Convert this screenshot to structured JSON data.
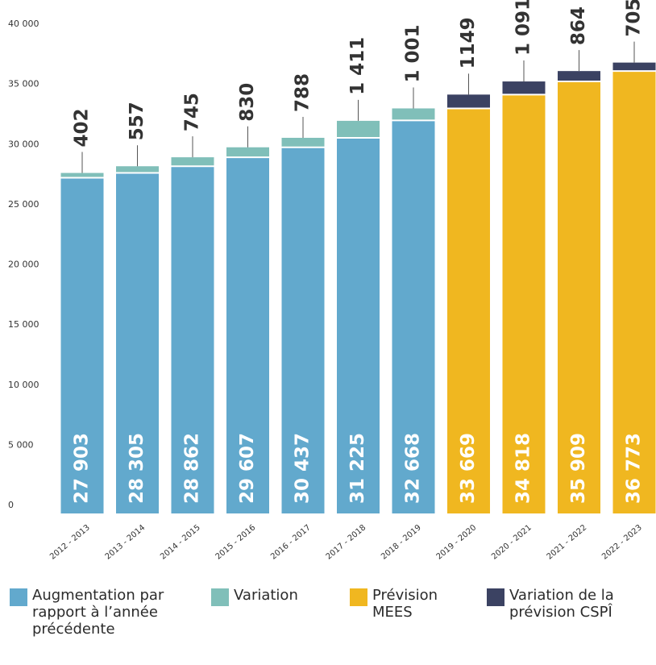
{
  "chart_data": {
    "type": "stacked_bar",
    "categories": [
      "2012 - 2013",
      "2013 - 2014",
      "2014 - 2015",
      "2015 - 2016",
      "2016 - 2017",
      "2017 - 2018",
      "2018 - 2019",
      "2019 - 2020",
      "2020 - 2021",
      "2021 - 2022",
      "2022 - 2023"
    ],
    "series": [
      {
        "name": "Augmentation par rapport à l’année précédente",
        "color": "#62a9cd",
        "values": [
          27903,
          28305,
          28862,
          29607,
          30437,
          31225,
          32668,
          null,
          null,
          null,
          null
        ],
        "value_labels": [
          "27 903",
          "28 305",
          "28 862",
          "29 607",
          "30 437",
          "31 225",
          "32 668",
          null,
          null,
          null,
          null
        ]
      },
      {
        "name": "Variation",
        "color": "#80bfb9",
        "values": [
          402,
          557,
          745,
          830,
          788,
          1411,
          1001,
          null,
          null,
          null,
          null
        ],
        "value_labels": [
          "402",
          "557",
          "745",
          "830",
          "788",
          "1 411",
          "1 001",
          null,
          null,
          null,
          null
        ]
      },
      {
        "name": "Prévision MEES",
        "color": "#f0b720",
        "values": [
          null,
          null,
          null,
          null,
          null,
          null,
          null,
          33669,
          34818,
          35909,
          36773
        ],
        "value_labels": [
          null,
          null,
          null,
          null,
          null,
          null,
          null,
          "33 669",
          "34 818",
          "35 909",
          "36 773"
        ]
      },
      {
        "name": "Variation de la prévision CSPÎ",
        "color": "#3b4262",
        "values": [
          null,
          null,
          null,
          null,
          null,
          null,
          null,
          1149,
          1091,
          864,
          705
        ],
        "value_labels": [
          null,
          null,
          null,
          null,
          null,
          null,
          null,
          "1149",
          "1 091",
          "864",
          "705"
        ]
      }
    ],
    "ylim": [
      0,
      40000
    ],
    "yticks": [
      0,
      {
        "value": 5000,
        "label": "5 000"
      },
      {
        "value": 10000,
        "label": "10 000"
      },
      {
        "value": 15000,
        "label": "15 000"
      },
      {
        "value": 20000,
        "label": "20 000"
      },
      {
        "value": 25000,
        "label": "25 000"
      },
      {
        "value": 30000,
        "label": "30 000"
      },
      {
        "value": 35000,
        "label": "35 000"
      },
      {
        "value": 40000,
        "label": "40 000"
      }
    ],
    "grid": false,
    "legend": "bottom"
  }
}
